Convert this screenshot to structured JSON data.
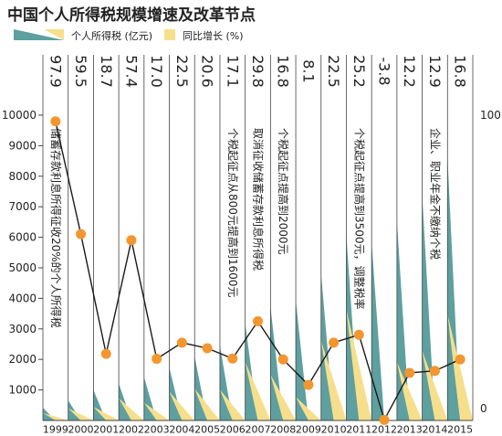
{
  "colors": {
    "teal": "#5e9fa0",
    "yellow": "#f6df8c",
    "dot": "#f3962e",
    "line": "#1a1a1a",
    "text": "#222222",
    "grid": "#444444"
  },
  "chart_data": {
    "type": "bar",
    "title": "中国个人所得税规模增速及改革节点",
    "legend": {
      "placement": "top",
      "revenue_label": "个人所得税 (亿元)",
      "growth_label": "同比增长 (%)"
    },
    "categories": [
      "1999",
      "2000",
      "2001",
      "2002",
      "2003",
      "2004",
      "2005",
      "2006",
      "2007",
      "2008",
      "2009",
      "2010",
      "2011",
      "2012",
      "2013",
      "2014",
      "2015"
    ],
    "growth_labels": [
      "97.9",
      "59.5",
      "18.7",
      "57.4",
      "17.0",
      "22.5",
      "20.6",
      "17.1",
      "29.8",
      "16.8",
      "8.1",
      "22.5",
      "25.2",
      "-3.8",
      "12.2",
      "12.9",
      "16.8"
    ],
    "series": [
      {
        "name": "个人所得税 (亿元)",
        "axis": "left",
        "values": [
          414,
          660,
          995,
          1212,
          1418,
          1737,
          2095,
          2454,
          3186,
          3722,
          3949,
          4837,
          6054,
          5820,
          6532,
          7377,
          8618
        ]
      },
      {
        "name": "同比增长 (%)",
        "axis": "right",
        "values": [
          97.9,
          59.5,
          18.7,
          57.4,
          17.0,
          22.5,
          20.6,
          17.1,
          29.8,
          16.8,
          8.1,
          22.5,
          25.2,
          -3.8,
          12.2,
          12.9,
          16.8
        ]
      }
    ],
    "left_axis": {
      "ylim": [
        0,
        10000
      ],
      "ticks": [
        "1000",
        "2000",
        "3000",
        "4000",
        "5000",
        "6000",
        "7000",
        "8000",
        "9000",
        "10000"
      ]
    },
    "right_axis": {
      "ylim": [
        -4,
        100
      ],
      "ticks": [
        "0",
        "100"
      ]
    },
    "annotations": [
      {
        "category": "1999",
        "text": "储蓄存款利息所得征收20%的个人所得税"
      },
      {
        "category": "2006",
        "text": "个税起征点从800元提高到1600元"
      },
      {
        "category": "2007",
        "text": "取消征收储蓄存款利息所得税"
      },
      {
        "category": "2008",
        "text": "个税起征点提高到2000元"
      },
      {
        "category": "2011",
        "text": "个税起征点提高到3500元，调整税率"
      },
      {
        "category": "2014",
        "text": "企业、职业年金不缴纳个税"
      }
    ],
    "grid": true
  }
}
